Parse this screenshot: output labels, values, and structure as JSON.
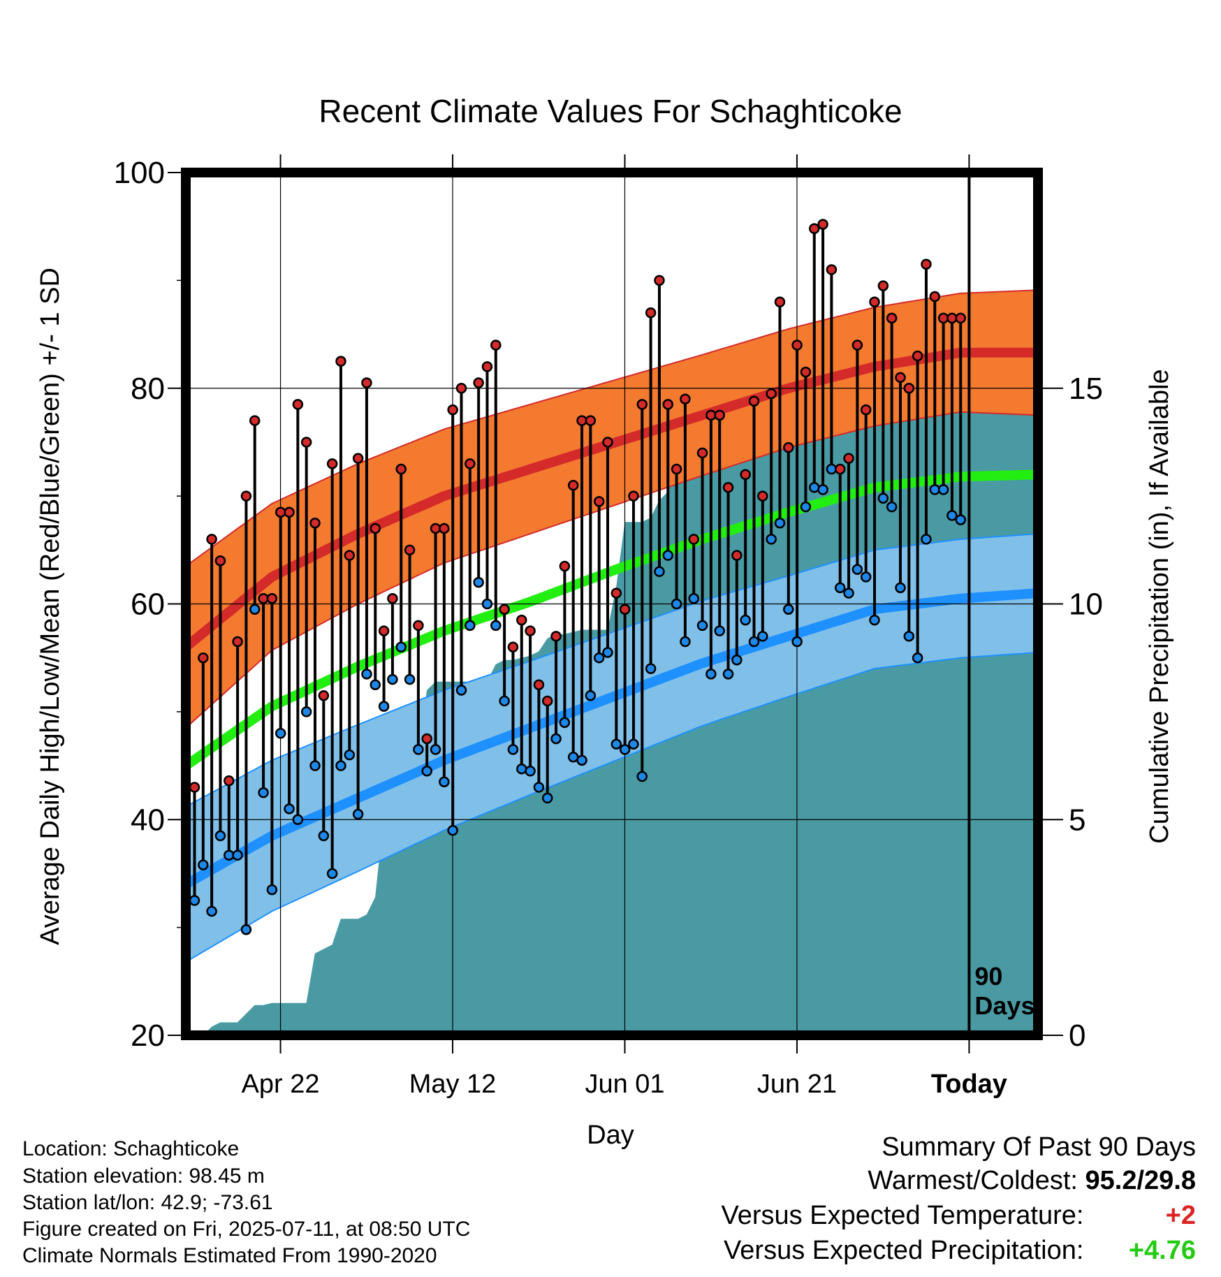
{
  "chart_data": {
    "type": "line",
    "title": "Recent Climate Values For Schaghticoke",
    "xlabel": "Day",
    "ylabel": "Average Daily High/Low/Mean (Red/Blue/Green) +/- 1 SD",
    "y2label": "Cumulative Precipitation (in), If Available",
    "ylim": [
      20,
      100
    ],
    "y2lim": [
      0,
      20
    ],
    "yticks": [
      "20",
      "40",
      "60",
      "80",
      "100"
    ],
    "y2ticks": [
      "0",
      "5",
      "10",
      "15"
    ],
    "x_day_range": [
      -90,
      9
    ],
    "xticks": [
      {
        "day": -79,
        "label": "Apr 22"
      },
      {
        "day": -59,
        "label": "May 12"
      },
      {
        "day": -39,
        "label": "Jun 01"
      },
      {
        "day": -19,
        "label": "Jun 21"
      },
      {
        "day": 1,
        "label": "Today"
      }
    ],
    "today_day": 1,
    "today_label": [
      "90",
      "Days"
    ],
    "grid": true,
    "colors": {
      "high_band": "#f47a30",
      "high_mean": "#d42a2a",
      "low_band": "#80c0e8",
      "low_mean": "#1e90ff",
      "mean": "#22ee11",
      "precip": "#4a9aa4",
      "high_marker": "#d42a2a",
      "low_marker": "#1e88e8"
    },
    "normals": {
      "day": [
        -90,
        -80,
        -70,
        -60,
        -50,
        -40,
        -30,
        -20,
        -10,
        0,
        9
      ],
      "high_mean": [
        56,
        62.5,
        66.5,
        70,
        72.5,
        75,
        77.5,
        80,
        82,
        83.3,
        83.3
      ],
      "high_sd": [
        7.5,
        6.8,
        6.5,
        6.2,
        6.0,
        5.8,
        5.6,
        5.5,
        5.5,
        5.5,
        5.8
      ],
      "low_mean": [
        34,
        38.5,
        42,
        45.5,
        48.5,
        51.5,
        54.5,
        57,
        59.5,
        60.5,
        61
      ],
      "low_sd": [
        7.2,
        7.0,
        6.8,
        6.5,
        6.2,
        6.0,
        5.8,
        5.6,
        5.5,
        5.5,
        5.5
      ],
      "mean": [
        45,
        50.5,
        54.2,
        57.5,
        60.2,
        63.2,
        66,
        68.5,
        70.8,
        71.8,
        72
      ]
    },
    "series": [
      {
        "name": "High",
        "values": [
          43,
          55,
          66,
          64,
          43.6,
          56.5,
          70,
          77,
          60.5,
          60.5,
          68.5,
          68.5,
          78.5,
          75,
          67.5,
          51.5,
          73,
          82.5,
          64.5,
          73.5,
          80.5,
          67,
          57.5,
          60.5,
          72.5,
          65,
          58,
          47.5,
          67,
          67,
          78,
          80,
          73,
          80.5,
          82,
          84,
          59.5,
          56,
          58.5,
          57.5,
          52.5,
          51,
          57,
          63.5,
          71,
          77,
          77,
          69.5,
          75,
          61,
          59.5,
          70,
          78.5,
          87,
          90,
          78.5,
          72.5,
          79,
          66,
          74,
          77.5,
          77.5,
          70.8,
          64.5,
          72,
          78.8,
          70,
          79.5,
          88,
          74.5,
          84,
          81.5,
          94.8,
          95.2,
          91,
          72.5,
          73.5,
          84,
          78,
          88,
          89.5,
          86.5,
          81,
          80,
          83,
          91.5,
          88.5,
          86.5,
          86.5,
          86.5
        ]
      },
      {
        "name": "Low",
        "values": [
          32.5,
          35.8,
          31.5,
          38.5,
          36.7,
          36.7,
          29.8,
          59.5,
          42.5,
          33.5,
          48,
          41,
          40,
          50,
          45,
          38.5,
          35,
          45,
          46,
          40.5,
          53.5,
          52.5,
          50.5,
          53,
          56,
          53,
          46.5,
          44.5,
          46.5,
          43.5,
          39,
          52,
          58,
          62,
          60,
          58,
          51,
          46.5,
          44.7,
          44.5,
          43,
          42,
          47.5,
          49,
          45.8,
          45.5,
          51.5,
          55,
          55.5,
          47,
          46.5,
          47,
          44,
          54,
          63,
          64.5,
          60,
          56.5,
          60.5,
          58,
          53.5,
          57.5,
          53.5,
          54.8,
          58.5,
          56.5,
          57,
          66,
          67.5,
          59.5,
          56.5,
          69,
          70.8,
          70.6,
          72.5,
          61.5,
          61,
          63.2,
          62.5,
          58.5,
          69.8,
          69,
          61.5,
          57,
          55,
          66,
          70.6,
          70.6,
          68.2,
          67.8
        ]
      },
      {
        "name": "Cumulative Precipitation",
        "values": [
          0,
          0,
          0.2,
          0.3,
          0.3,
          0.3,
          0.5,
          0.7,
          0.7,
          0.75,
          0.75,
          0.75,
          0.75,
          0.75,
          1.9,
          2.0,
          2.1,
          2.7,
          2.7,
          2.7,
          2.8,
          3.2,
          5.1,
          5.6,
          6.1,
          6.1,
          6.5,
          8.0,
          8.2,
          8.2,
          8.2,
          8.2,
          8.2,
          8.2,
          8.2,
          8.6,
          8.7,
          8.7,
          8.75,
          8.8,
          8.9,
          9.2,
          9.3,
          9.3,
          9.35,
          9.4,
          9.4,
          9.4,
          9.4,
          10.4,
          11.9,
          11.9,
          11.9,
          12.0,
          12.4,
          12.6,
          13.8,
          14.0,
          14.1,
          14.4,
          14.4,
          14.5,
          14.5,
          14.6,
          14.6,
          14.6,
          14.8,
          15.0,
          15.3,
          15.5,
          15.6,
          15.8,
          15.8,
          15.8,
          15.8,
          15.8,
          15.8,
          15.8,
          15.8,
          15.8,
          15.8,
          15.8,
          16.0,
          16.0,
          16.2,
          16.2,
          16.2,
          16.2,
          16.2,
          16.2,
          16.2
        ]
      }
    ]
  },
  "info": {
    "location": "Location: Schaghticoke",
    "elevation": "Station elevation: 98.45 m",
    "latlon": "Station lat/lon: 42.9; -73.61",
    "created": "Figure created on Fri, 2025-07-11, at 08:50 UTC",
    "normals": "Climate Normals Estimated From 1990-2020"
  },
  "summary": {
    "title": "Summary Of Past 90 Days",
    "warmest_coldest_label": "Warmest/Coldest:",
    "warmest_coldest_value": "95.2/29.8",
    "temp_label": "Versus Expected Temperature:",
    "temp_value": "+2",
    "temp_color": "#dd2222",
    "precip_label": "Versus Expected Precipitation:",
    "precip_value": "+4.76",
    "precip_color": "#22cc11"
  }
}
